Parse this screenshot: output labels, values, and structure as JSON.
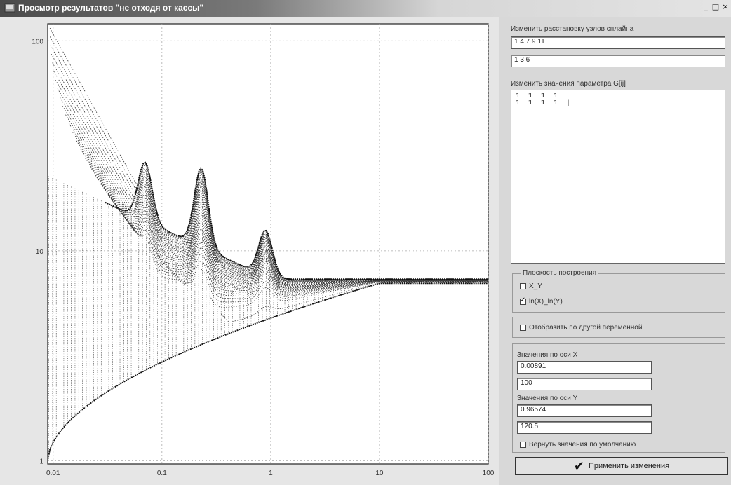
{
  "window": {
    "title": "Просмотр результатов \"не отходя от кассы\"",
    "minimize": "_",
    "maximize": "□",
    "close": "×"
  },
  "panel": {
    "spline_nodes_label": "Изменить расстановку узлов сплайна",
    "spline_nodes_x": "1 4 7 9 11",
    "spline_nodes_y": "1 3 6",
    "param_label": "Изменить значения параметра G[ij]",
    "param_lines": [
      "1  1  1  1",
      "1  1  1  1  |"
    ],
    "plane_group": "Плоскость построения",
    "plane_xy": {
      "label": "X_Y",
      "checked": false
    },
    "plane_ln": {
      "label": "ln(X)_ln(Y)",
      "checked": true
    },
    "other_var": {
      "label": "Отобразить по другой переменной",
      "checked": false
    },
    "x_axis_label": "Значения по оси X",
    "x_min": "0.00891",
    "x_max": "100",
    "y_axis_label": "Значения по оси Y",
    "y_min": "0.96574",
    "y_max": "120.5",
    "reset_defaults": {
      "label": "Вернуть значения по умолчанию",
      "checked": false
    },
    "apply_label": "Применить изменения",
    "apply_icon": "check-icon"
  },
  "chart_data": {
    "type": "line",
    "title": "",
    "xlabel": "",
    "ylabel": "",
    "xscale": "log",
    "yscale": "log",
    "xlim": [
      0.00891,
      100
    ],
    "ylim": [
      0.96574,
      120.5
    ],
    "x_ticks": [
      "0.01",
      "0.1",
      "1",
      "10",
      "100"
    ],
    "y_ticks": [
      "1",
      "10",
      "100"
    ],
    "x_tick_values": [
      0.01,
      0.1,
      1,
      10,
      100
    ],
    "y_tick_values": [
      1,
      10,
      100
    ],
    "grid": true,
    "limit_value": 7.0,
    "peaks": [
      {
        "x": 0.07,
        "y": 16
      },
      {
        "x": 0.23,
        "y": 20
      },
      {
        "x": 0.9,
        "y": 14
      }
    ],
    "dips": [
      {
        "x": 0.1,
        "y": 12
      },
      {
        "x": 0.55,
        "y": 11.5
      }
    ],
    "start_point": {
      "x": 0.011,
      "y": 115
    },
    "lower_envelope_start": {
      "x": 0.01,
      "y": 1.0
    },
    "marker": "dot"
  }
}
